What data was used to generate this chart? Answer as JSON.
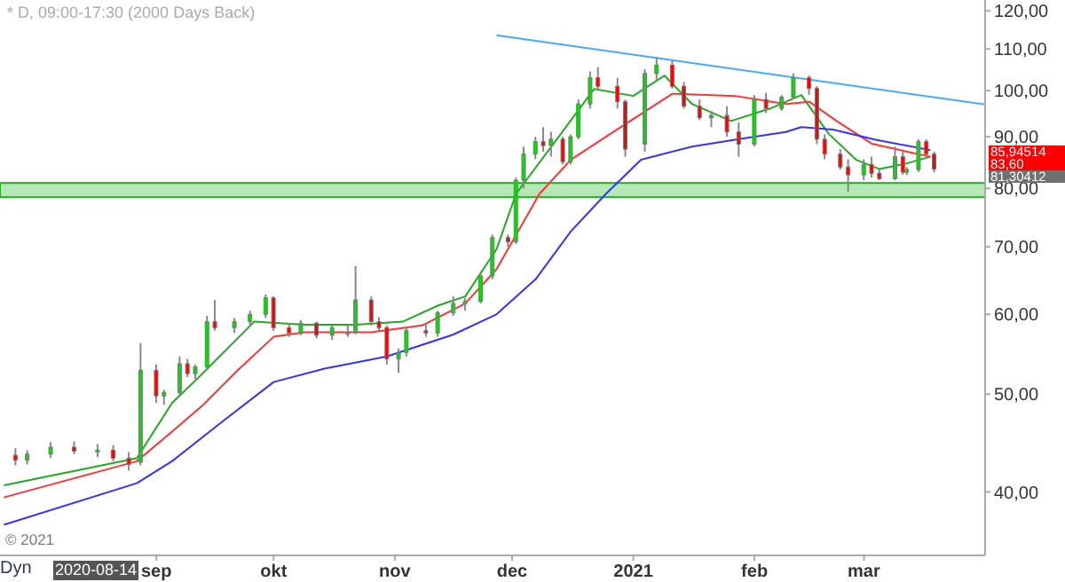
{
  "chart_data": {
    "type": "candlestick",
    "title": "* D, 09:00-17:30 (2000 Days Back)",
    "x": [
      "2020-07-27",
      "2020-07-30",
      "2020-08-05",
      "2020-08-11",
      "2020-08-17",
      "2020-08-21",
      "2020-08-25",
      "2020-08-28",
      "2020-09-01",
      "2020-09-03",
      "2020-09-07",
      "2020-09-09",
      "2020-09-11",
      "2020-09-14",
      "2020-09-16",
      "2020-09-21",
      "2020-09-25",
      "2020-09-29",
      "2020-10-01",
      "2020-10-05",
      "2020-10-08",
      "2020-10-12",
      "2020-10-16",
      "2020-10-20",
      "2020-10-22",
      "2020-10-26",
      "2020-10-28",
      "2020-10-30",
      "2020-11-02",
      "2020-11-04",
      "2020-11-09",
      "2020-11-12",
      "2020-11-16",
      "2020-11-19",
      "2020-11-23",
      "2020-11-26",
      "2020-11-30",
      "2020-12-02",
      "2020-12-04",
      "2020-12-07",
      "2020-12-09",
      "2020-12-11",
      "2020-12-14",
      "2020-12-16",
      "2020-12-18",
      "2020-12-21",
      "2020-12-23",
      "2020-12-28",
      "2020-12-30",
      "2021-01-04",
      "2021-01-07",
      "2021-01-11",
      "2021-01-14",
      "2021-01-18",
      "2021-01-21",
      "2021-01-25",
      "2021-01-28",
      "2021-02-01",
      "2021-02-04",
      "2021-02-08",
      "2021-02-11",
      "2021-02-15",
      "2021-02-17",
      "2021-02-19",
      "2021-02-23",
      "2021-02-25",
      "2021-03-01",
      "2021-03-03",
      "2021-03-05",
      "2021-03-09",
      "2021-03-11",
      "2021-03-12",
      "2021-03-15",
      "2021-03-17",
      "2021-03-19"
    ],
    "ohlc": [
      [
        43.5,
        44.2,
        42.5,
        43.0
      ],
      [
        43.0,
        44.0,
        42.6,
        43.6
      ],
      [
        43.6,
        44.8,
        43.2,
        44.3
      ],
      [
        44.3,
        44.9,
        43.6,
        43.9
      ],
      [
        43.9,
        44.6,
        43.3,
        44.0
      ],
      [
        44.0,
        44.5,
        42.9,
        43.2
      ],
      [
        43.2,
        43.8,
        42.0,
        42.6
      ],
      [
        42.8,
        56.2,
        42.5,
        52.8
      ],
      [
        52.8,
        53.5,
        49.0,
        49.8
      ],
      [
        49.8,
        50.5,
        48.8,
        50.2
      ],
      [
        50.2,
        54.5,
        49.8,
        53.6
      ],
      [
        53.6,
        54.2,
        52.0,
        52.4
      ],
      [
        52.4,
        53.5,
        51.8,
        53.2
      ],
      [
        53.2,
        59.8,
        53.0,
        59.0
      ],
      [
        59.0,
        62.0,
        57.8,
        58.2
      ],
      [
        58.2,
        59.5,
        57.5,
        59.0
      ],
      [
        59.0,
        60.5,
        58.3,
        60.0
      ],
      [
        60.0,
        62.8,
        59.5,
        62.3
      ],
      [
        62.3,
        62.5,
        57.8,
        58.2
      ],
      [
        58.2,
        58.8,
        57.0,
        57.5
      ],
      [
        57.5,
        59.2,
        57.2,
        58.8
      ],
      [
        58.8,
        59.0,
        56.8,
        57.2
      ],
      [
        57.2,
        58.5,
        56.6,
        58.2
      ],
      [
        57.4,
        58.5,
        57.0,
        57.6
      ],
      [
        57.6,
        67.0,
        57.3,
        62.0
      ],
      [
        62.0,
        62.5,
        58.5,
        59.0
      ],
      [
        59.0,
        59.6,
        57.8,
        58.2
      ],
      [
        58.2,
        58.5,
        53.5,
        54.2
      ],
      [
        54.2,
        55.5,
        52.5,
        55.0
      ],
      [
        55.0,
        58.2,
        54.5,
        57.8
      ],
      [
        57.8,
        58.8,
        57.0,
        57.5
      ],
      [
        57.5,
        60.5,
        57.0,
        60.2
      ],
      [
        60.2,
        62.5,
        59.8,
        61.5
      ],
      [
        61.5,
        62.3,
        60.5,
        61.8
      ],
      [
        61.8,
        66.0,
        61.5,
        65.5
      ],
      [
        65.5,
        72.0,
        65.0,
        71.5
      ],
      [
        71.5,
        72.0,
        70.0,
        70.8
      ],
      [
        70.8,
        82.0,
        70.5,
        81.5
      ],
      [
        81.5,
        88.0,
        80.0,
        86.5
      ],
      [
        86.5,
        90.0,
        85.5,
        89.0
      ],
      [
        89.0,
        92.0,
        87.0,
        88.2
      ],
      [
        88.2,
        91.0,
        86.0,
        89.5
      ],
      [
        89.5,
        90.0,
        84.5,
        85.0
      ],
      [
        85.0,
        90.5,
        84.5,
        90.0
      ],
      [
        90.0,
        98.0,
        89.5,
        97.0
      ],
      [
        97.0,
        104.5,
        96.0,
        103.0
      ],
      [
        103.0,
        105.5,
        100.0,
        101.0
      ],
      [
        101.0,
        103.0,
        96.0,
        97.5
      ],
      [
        97.5,
        98.0,
        86.0,
        87.5
      ],
      [
        88.5,
        105.0,
        87.0,
        104.0
      ],
      [
        104.0,
        108.0,
        102.0,
        106.0
      ],
      [
        106.0,
        107.0,
        100.5,
        101.0
      ],
      [
        101.0,
        102.0,
        96.0,
        96.5
      ],
      [
        96.5,
        98.0,
        93.5,
        94.0
      ],
      [
        94.0,
        95.5,
        92.0,
        94.5
      ],
      [
        94.5,
        96.5,
        90.0,
        91.0
      ],
      [
        91.0,
        93.0,
        86.0,
        88.5
      ],
      [
        88.5,
        99.0,
        88.0,
        98.0
      ],
      [
        98.0,
        99.5,
        95.0,
        96.0
      ],
      [
        96.0,
        99.0,
        95.5,
        98.5
      ],
      [
        98.5,
        104.0,
        98.0,
        103.0
      ],
      [
        103.0,
        103.5,
        99.0,
        100.5
      ],
      [
        100.5,
        101.0,
        88.5,
        89.5
      ],
      [
        89.5,
        90.5,
        85.5,
        86.5
      ],
      [
        86.5,
        87.5,
        83.5,
        84.0
      ],
      [
        84.0,
        85.5,
        79.4,
        82.5
      ],
      [
        82.5,
        85.5,
        81.5,
        84.5
      ],
      [
        84.5,
        86.0,
        82.0,
        82.8
      ],
      [
        82.8,
        83.5,
        81.5,
        81.8
      ],
      [
        81.8,
        88.0,
        81.5,
        86.0
      ],
      [
        86.0,
        87.0,
        82.5,
        83.0
      ],
      [
        83.0,
        84.0,
        82.5,
        83.5
      ],
      [
        83.5,
        89.5,
        83.0,
        89.0
      ],
      [
        89.0,
        89.5,
        86.0,
        86.5
      ],
      [
        86.5,
        87.0,
        83.0,
        83.6
      ]
    ],
    "series": [
      {
        "type": "line",
        "color": "#22aa22",
        "x": [
          "2020-07-24",
          "2020-08-27",
          "2020-09-05",
          "2020-09-13",
          "2020-09-26",
          "2020-10-09",
          "2020-10-22",
          "2020-11-03",
          "2020-11-12",
          "2020-11-19",
          "2020-11-27",
          "2020-12-02",
          "2020-12-12",
          "2020-12-22",
          "2021-01-01",
          "2021-01-09",
          "2021-01-16",
          "2021-01-26",
          "2021-02-05",
          "2021-02-13",
          "2021-02-20",
          "2021-02-27",
          "2021-03-05",
          "2021-03-12",
          "2021-03-18"
        ],
        "values": [
          40.6,
          43.2,
          49,
          52.5,
          59,
          58.6,
          58.6,
          59,
          61.2,
          62.5,
          69.6,
          79,
          89,
          100.4,
          98.8,
          103.5,
          97,
          93.3,
          96,
          99,
          90.6,
          85.4,
          83.6,
          84.7,
          86
        ]
      },
      {
        "type": "line",
        "color": "#ff3333",
        "x": [
          "2020-07-24",
          "2020-08-27",
          "2020-09-05",
          "2020-09-13",
          "2020-09-22",
          "2020-10-01",
          "2020-10-09",
          "2020-10-26",
          "2020-11-08",
          "2020-11-19",
          "2020-11-27",
          "2020-12-08",
          "2020-12-16",
          "2020-12-25",
          "2021-01-11",
          "2021-01-27",
          "2021-02-09",
          "2021-02-15",
          "2021-02-22",
          "2021-03-03",
          "2021-03-12",
          "2021-03-18"
        ],
        "values": [
          39.5,
          42.9,
          45.9,
          48.8,
          52.9,
          57,
          57.6,
          57.6,
          58.5,
          61.5,
          66.5,
          79,
          85.4,
          90,
          99.3,
          98.8,
          97,
          97.5,
          93.3,
          88.6,
          87,
          86
        ]
      },
      {
        "type": "line",
        "color": "#3333ff",
        "x": [
          "2020-07-24",
          "2020-08-27",
          "2020-09-05",
          "2020-09-18",
          "2020-10-01",
          "2020-10-14",
          "2020-10-30",
          "2020-11-16",
          "2020-11-27",
          "2020-12-07",
          "2020-12-16",
          "2020-12-25",
          "2021-01-03",
          "2021-01-16",
          "2021-01-27",
          "2021-02-09",
          "2021-02-13",
          "2021-02-21",
          "2021-03-04",
          "2021-03-18"
        ],
        "values": [
          37.1,
          40.8,
          42.9,
          47,
          51.4,
          53,
          54.5,
          57.3,
          60,
          65,
          72.5,
          79,
          85.4,
          88,
          89.4,
          91,
          92,
          91.5,
          89.4,
          87.3
        ]
      },
      {
        "type": "line",
        "color": "#44aaff",
        "x": [
          "2020-11-27",
          "2021-04-01"
        ],
        "values": [
          113.5,
          96.9
        ]
      }
    ],
    "bands": [
      {
        "axis": "y",
        "from": 78.4,
        "to": 81,
        "color": "#99dd99"
      }
    ],
    "annotations": [
      "© 2021",
      "Dyn",
      "2020-08-14",
      "85,94514",
      "83,60",
      "81,30412"
    ],
    "log": "y",
    "xlim": [
      "2020-07-23",
      "2021-04-01"
    ],
    "xticks": [
      {
        "value": "2020-09-01",
        "label": "sep"
      },
      {
        "value": "2020-10-01",
        "label": "okt"
      },
      {
        "value": "2020-11-01",
        "label": "nov"
      },
      {
        "value": "2020-12-01",
        "label": "dec"
      },
      {
        "value": "2021-01-01",
        "label": "2021"
      },
      {
        "value": "2021-02-01",
        "label": "feb"
      },
      {
        "value": "2021-03-01",
        "label": "mar"
      }
    ],
    "ylim": [
      34.6,
      123
    ],
    "yticks": [
      {
        "value": 40,
        "label": "40,00"
      },
      {
        "value": 50,
        "label": "50,00"
      },
      {
        "value": 60,
        "label": "60,00"
      },
      {
        "value": 70,
        "label": "70,00"
      },
      {
        "value": 80,
        "label": "80,00"
      },
      {
        "value": 90,
        "label": "90,00"
      },
      {
        "value": 100,
        "label": "100,00"
      },
      {
        "value": 110,
        "label": "110,00"
      },
      {
        "value": 120,
        "label": "120,00"
      }
    ]
  }
}
